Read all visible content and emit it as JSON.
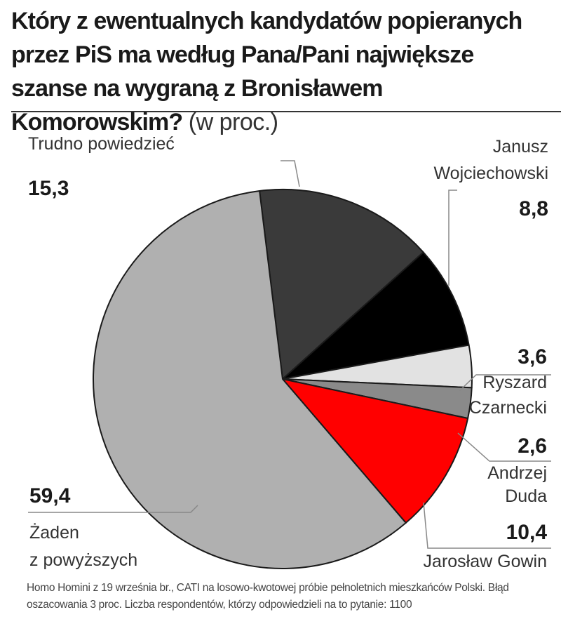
{
  "title": "Który z ewentualnych kandydatów popieranych przez PiS ma według Pana/Pani największe szanse na wygraną z Bronisławem Komorowskim?",
  "title_unit": "(w proc.)",
  "chart_data": {
    "type": "pie",
    "title": "Który z ewentualnych kandydatów popieranych przez PiS ma według Pana/Pani największe szanse na wygraną z Bronisławem Komorowskim?",
    "unit": "(w proc.)",
    "slices": [
      {
        "name_lines": [
          "Trudno powiedzieć"
        ],
        "value": 15.3,
        "value_label": "15,3",
        "color": "#3a3a3a"
      },
      {
        "name_lines": [
          "Janusz",
          "Wojciechowski"
        ],
        "value": 8.8,
        "value_label": "8,8",
        "color": "#000000"
      },
      {
        "name_lines": [
          "Ryszard",
          "Czarnecki"
        ],
        "value": 3.6,
        "value_label": "3,6",
        "color": "#e2e2e2"
      },
      {
        "name_lines": [
          "Andrzej",
          "Duda"
        ],
        "value": 2.6,
        "value_label": "2,6",
        "color": "#8a8a8a"
      },
      {
        "name_lines": [
          "Jarosław Gowin"
        ],
        "value": 10.4,
        "value_label": "10,4",
        "color": "#ff0000"
      },
      {
        "name_lines": [
          "Żaden",
          "z powyższych"
        ],
        "value": 59.4,
        "value_label": "59,4",
        "color": "#b0b0b0"
      }
    ]
  },
  "footnote": "Homo Homini z 19 września br., CATI na losowo-kwotowej próbie pełnoletnich mieszkańców Polski. Błąd oszacowania 3 proc. Liczba respondentów, którzy odpowiedzieli na to pytanie: 1100"
}
